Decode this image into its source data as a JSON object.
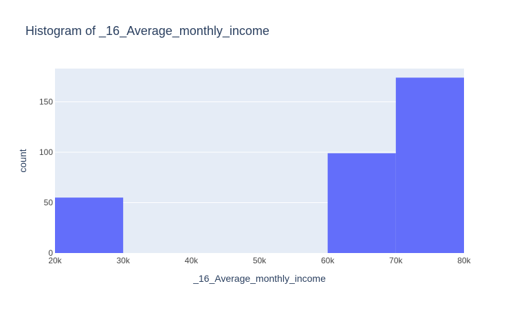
{
  "chart_data": {
    "type": "bar",
    "title": "Histogram of _16_Average_monthly_income",
    "xlabel": "_16_Average_monthly_income",
    "ylabel": "count",
    "xlim": [
      20000,
      80000
    ],
    "ylim": [
      0,
      183
    ],
    "x_ticks": [
      20000,
      30000,
      40000,
      50000,
      60000,
      70000,
      80000
    ],
    "x_tick_labels": [
      "20k",
      "30k",
      "40k",
      "50k",
      "60k",
      "70k",
      "80k"
    ],
    "y_ticks": [
      0,
      50,
      100,
      150
    ],
    "y_tick_labels": [
      "0",
      "50",
      "100",
      "150"
    ],
    "bins": [
      {
        "x0": 20000,
        "x1": 30000,
        "count": 55
      },
      {
        "x0": 30000,
        "x1": 40000,
        "count": 0
      },
      {
        "x0": 40000,
        "x1": 50000,
        "count": 0
      },
      {
        "x0": 50000,
        "x1": 60000,
        "count": 0
      },
      {
        "x0": 60000,
        "x1": 70000,
        "count": 99
      },
      {
        "x0": 70000,
        "x1": 80000,
        "count": 174
      }
    ],
    "grid": true,
    "legend": "none",
    "colors": {
      "bar": "#636efa",
      "plot_bg": "#e5ecf6",
      "grid": "#ffffff",
      "text": "#2a3f5f",
      "tick_text": "#444444"
    }
  }
}
